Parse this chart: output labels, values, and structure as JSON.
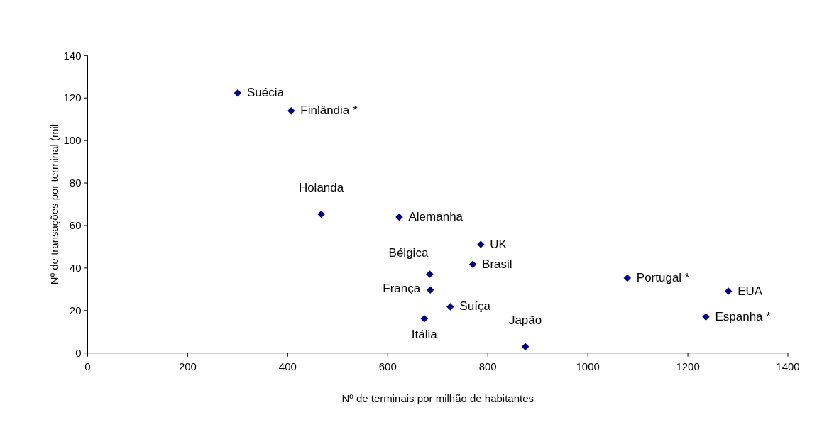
{
  "chart_data": {
    "type": "scatter",
    "xlabel": "Nº de terminais por milhão de habitantes",
    "ylabel": "Nº de transações por terminal (mil",
    "xlim": [
      0,
      1400
    ],
    "ylim": [
      0,
      140
    ],
    "xticks": [
      0,
      200,
      400,
      600,
      800,
      1000,
      1200,
      1400
    ],
    "yticks": [
      0,
      20,
      40,
      60,
      80,
      100,
      120,
      140
    ],
    "marker": "diamond",
    "series": [
      {
        "color": "#000080",
        "x": [
          300,
          407,
          467,
          623,
          786,
          770,
          684,
          685,
          725,
          673,
          875,
          1079,
          1281,
          1236
        ],
        "values": [
          122.3,
          114,
          65.3,
          64,
          51.1,
          41.7,
          37.1,
          29.7,
          21.8,
          16.2,
          3,
          35.3,
          29.1,
          17
        ]
      }
    ],
    "annotations": [
      {
        "text": "Suécia",
        "x": 300,
        "y": 122.3
      },
      {
        "text": "Finlândia *",
        "x": 407,
        "y": 114
      },
      {
        "text": "Holanda",
        "x": 467,
        "y": 65.3
      },
      {
        "text": "Alemanha",
        "x": 623,
        "y": 64
      },
      {
        "text": "UK",
        "x": 786,
        "y": 51.1
      },
      {
        "text": "Brasil",
        "x": 770,
        "y": 41.7
      },
      {
        "text": "Bélgica",
        "x": 684,
        "y": 37.1
      },
      {
        "text": "França",
        "x": 685,
        "y": 29.7
      },
      {
        "text": "Suíça",
        "x": 725,
        "y": 21.8
      },
      {
        "text": "Itália",
        "x": 673,
        "y": 16.2
      },
      {
        "text": "Japão",
        "x": 875,
        "y": 3
      },
      {
        "text": "Portugal *",
        "x": 1079,
        "y": 35.3
      },
      {
        "text": "EUA",
        "x": 1281,
        "y": 29.1
      },
      {
        "text": "Espanha *",
        "x": 1236,
        "y": 17
      }
    ]
  }
}
